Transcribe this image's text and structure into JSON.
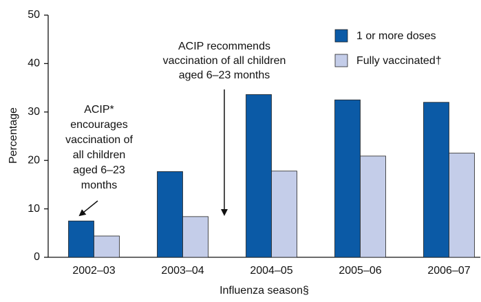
{
  "chart_data": {
    "type": "bar",
    "categories": [
      "2002–03",
      "2003–04",
      "2004–05",
      "2005–06",
      "2006–07"
    ],
    "series": [
      {
        "name": "1 or more doses",
        "color": "#0b5aa6",
        "values": [
          7.5,
          17.7,
          33.6,
          32.5,
          32.0
        ]
      },
      {
        "name": "Fully vaccinated†",
        "color": "#c4cde9",
        "values": [
          4.4,
          8.4,
          17.8,
          20.9,
          21.5
        ]
      }
    ],
    "x_label": "Influenza season§",
    "y_label": "Percentage",
    "ylim": [
      0,
      50
    ],
    "yticks": [
      0,
      10,
      20,
      30,
      40,
      50
    ],
    "legend": "top-right",
    "annotations": [
      [
        "ACIP*",
        "encourages",
        "vaccination of",
        "all children",
        "aged 6–23",
        "months"
      ],
      [
        "ACIP recommends",
        "vaccination of all children",
        "aged 6–23 months"
      ]
    ]
  }
}
